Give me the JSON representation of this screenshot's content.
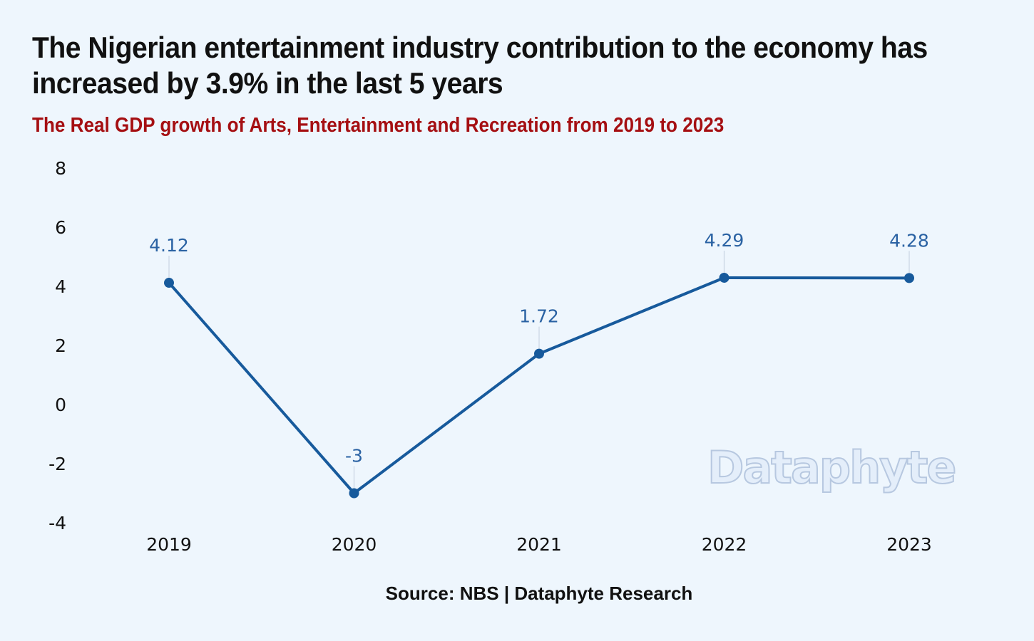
{
  "header": {
    "title": "The Nigerian entertainment industry contribution to the economy has increased by 3.9% in the last 5 years",
    "subtitle": "The Real GDP growth of Arts, Entertainment and Recreation from 2019 to 2023"
  },
  "footer": {
    "source": "Source: NBS | Dataphyte Research",
    "watermark": "Dataphyte"
  },
  "colors": {
    "background": "#eef6fd",
    "line": "#175a9c",
    "label": "#2a62a3",
    "subtitle": "#a50f12"
  },
  "chart_data": {
    "type": "line",
    "categories": [
      "2019",
      "2020",
      "2021",
      "2022",
      "2023"
    ],
    "series": [
      {
        "values": [
          4.12,
          -3,
          1.72,
          4.29,
          4.28
        ]
      }
    ],
    "data_labels": [
      "4.12",
      "-3",
      "1.72",
      "4.29",
      "4.28"
    ],
    "yticks": [
      "-4",
      "-2",
      "0",
      "2",
      "4",
      "6",
      "8"
    ],
    "ylim": [
      -4,
      8
    ],
    "grid": false,
    "legend": "none"
  }
}
